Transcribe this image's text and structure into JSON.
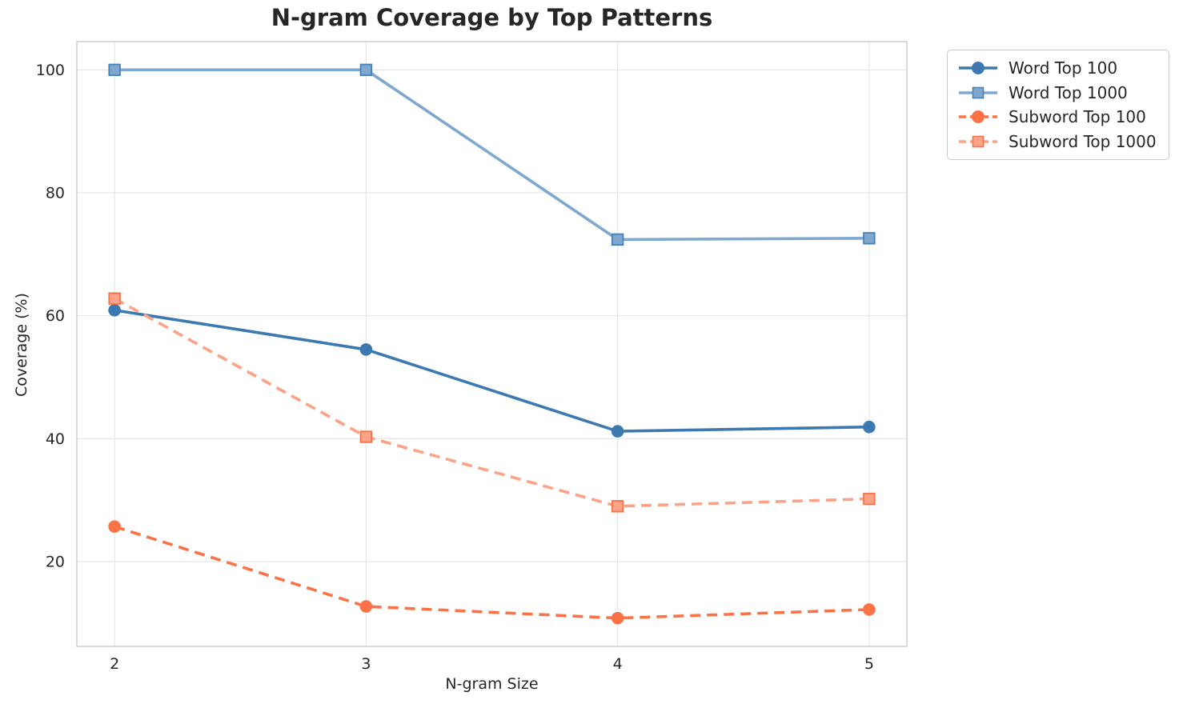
{
  "chart_data": {
    "type": "line",
    "title": "N-gram Coverage by Top Patterns",
    "xlabel": "N-gram Size",
    "ylabel": "Coverage (%)",
    "x": [
      2,
      3,
      4,
      5
    ],
    "xticks": [
      "2",
      "3",
      "4",
      "5"
    ],
    "yticks": [
      20,
      40,
      60,
      80,
      100
    ],
    "xlim": [
      1.85,
      5.15
    ],
    "ylim": [
      6.2,
      104.6
    ],
    "grid": true,
    "legend_position": "outside-top-right",
    "series": [
      {
        "name": "Word Top 100",
        "values": [
          60.9,
          54.5,
          41.2,
          41.9
        ],
        "color": "#3c79b0",
        "marker": "circle",
        "marker_edge": "#3c79b0",
        "line_style": "solid"
      },
      {
        "name": "Word Top 1000",
        "values": [
          100.0,
          100.0,
          72.4,
          72.6
        ],
        "color": "#7fa8d0",
        "marker": "square",
        "marker_edge": "#4a80b4",
        "line_style": "solid"
      },
      {
        "name": "Subword Top 100",
        "values": [
          25.7,
          12.7,
          10.8,
          12.2
        ],
        "color": "#fb7246",
        "marker": "circle",
        "marker_edge": "#fb7246",
        "line_style": "dashed"
      },
      {
        "name": "Subword Top 1000",
        "values": [
          62.8,
          40.3,
          29.0,
          30.2
        ],
        "color": "#fca287",
        "marker": "square",
        "marker_edge": "#f4744c",
        "line_style": "dashed"
      }
    ],
    "style": {
      "grid_color": "#e8e8e8",
      "spine_color": "#cdcdcd",
      "text_color": "#262626",
      "background": "#ffffff"
    }
  }
}
